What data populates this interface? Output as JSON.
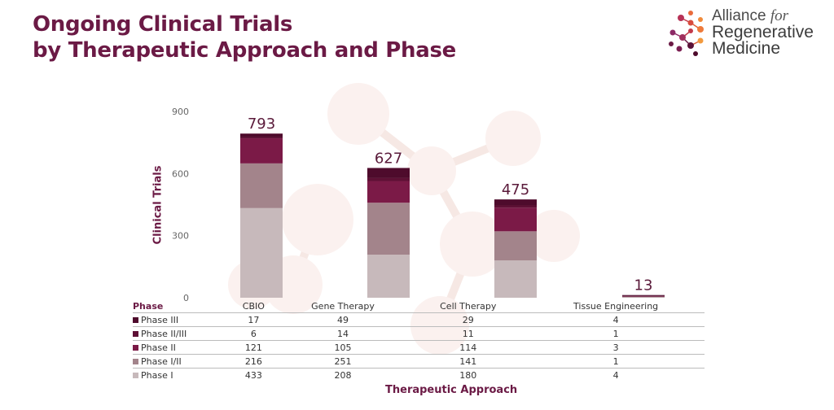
{
  "header": {
    "title_line1": "Ongoing Clinical Trials",
    "title_line2": "by Therapeutic Approach and Phase"
  },
  "logo": {
    "line1": "Alliance",
    "line1_suffix": "for",
    "line2": "Regenerative",
    "line3": "Medicine"
  },
  "colors": {
    "title": "#6b1a45",
    "phase_iii": "#4e0b2c",
    "phase_ii_iii": "#5e1035",
    "phase_ii": "#7b1a47",
    "phase_i_ii": "#a3848b",
    "phase_i": "#c7b9bb"
  },
  "chart_data": {
    "type": "bar",
    "stacked": true,
    "categories": [
      "CBIO",
      "Gene Therapy",
      "Cell Therapy",
      "Tissue Engineering"
    ],
    "series": [
      {
        "name": "Phase III",
        "values": [
          17,
          49,
          29,
          4
        ]
      },
      {
        "name": "Phase II/III",
        "values": [
          6,
          14,
          11,
          1
        ]
      },
      {
        "name": "Phase II",
        "values": [
          121,
          105,
          114,
          3
        ]
      },
      {
        "name": "Phase I/II",
        "values": [
          216,
          251,
          141,
          1
        ]
      },
      {
        "name": "Phase I",
        "values": [
          433,
          208,
          180,
          4
        ]
      }
    ],
    "totals": [
      793,
      627,
      475,
      13
    ],
    "xlabel": "Therapeutic Approach",
    "ylabel": "Clinical Trials",
    "ylim": [
      0,
      900
    ],
    "yticks": [
      0,
      300,
      600,
      900
    ],
    "table_header": "Phase",
    "grid": false
  }
}
